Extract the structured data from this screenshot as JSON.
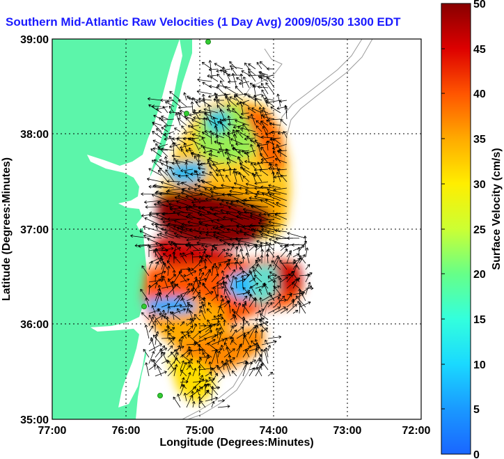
{
  "title": "Southern Mid-Atlantic Raw Velocities (1 Day Avg) 2009/05/30 1300 EDT",
  "axes": {
    "xlabel": "Longitude (Degrees:Minutes)",
    "ylabel": "Latitude (Degrees:Minutes)",
    "xticks": [
      "77:00",
      "76:00",
      "75:00",
      "74:00",
      "73:00",
      "72:00"
    ],
    "yticks": [
      "39:00",
      "38:00",
      "37:00",
      "36:00",
      "35:00"
    ]
  },
  "colorbar": {
    "label": "Surface Velocity (cm/s)",
    "ticks": [
      "0",
      "5",
      "10",
      "15",
      "20",
      "25",
      "30",
      "35",
      "40",
      "45",
      "50"
    ]
  },
  "colors": {
    "land": "#5cf5aa",
    "water": "#ffffff",
    "title": "#1a1aff",
    "arrows": "#000000",
    "grid": "#000000",
    "bathymetry": "#9a9a9a",
    "sites": "#33cc33"
  }
}
